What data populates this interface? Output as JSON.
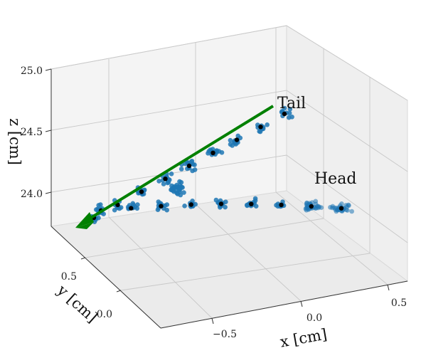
{
  "chart_data": {
    "type": "scatter",
    "projection": "3d",
    "title": "",
    "xlabel": "x [cm]",
    "ylabel": "y [cm]",
    "zlabel": "z [cm]",
    "x_ticks": [
      "−0.5",
      "0.0",
      "0.5"
    ],
    "y_ticks": [
      "0.0",
      "0.5"
    ],
    "z_ticks": [
      "24.0",
      "24.5",
      "25.0"
    ],
    "grid": true,
    "annotations": [
      "Tail",
      "Head"
    ],
    "colors": {
      "points": "#1f77b4",
      "centerline": "#000000",
      "arrow": "#008000",
      "pane": "#f2f2f2",
      "grid": "#c8c8c8"
    },
    "tail_branch": {
      "x": [
        -0.85,
        -0.7,
        -0.55,
        -0.45,
        -0.35,
        -0.25,
        -0.15,
        -0.05,
        0.05
      ],
      "y": [
        0.85,
        0.8,
        0.75,
        0.7,
        0.65,
        0.6,
        0.55,
        0.5,
        0.45
      ],
      "z": [
        23.75,
        23.85,
        23.95,
        24.05,
        24.15,
        24.25,
        24.35,
        24.45,
        24.55
      ]
    },
    "head_branch": {
      "x": [
        -0.85,
        -0.7,
        -0.55,
        -0.4,
        -0.25,
        -0.1,
        0.05,
        0.2,
        0.3
      ],
      "y": [
        0.85,
        0.8,
        0.75,
        0.7,
        0.65,
        0.6,
        0.55,
        0.5,
        0.45
      ],
      "z": [
        23.75,
        23.78,
        23.8,
        23.82,
        23.83,
        23.84,
        23.85,
        23.86,
        23.87
      ]
    }
  }
}
